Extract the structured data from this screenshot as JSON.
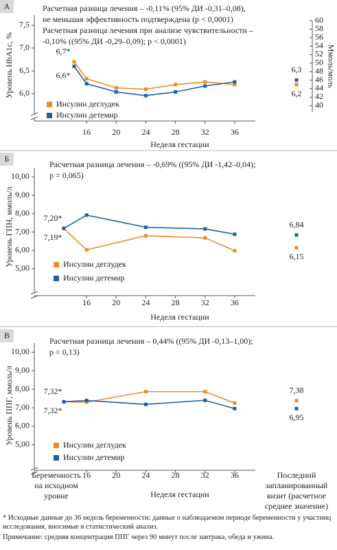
{
  "footnote": "* Исходные данные до 36 недель беременности: данные о наблюдаемом периоде беременности у участниц исследования, вносимые в статистический анализ.",
  "note": "Примечание: средняя концентрация ППГ через 90 минут после завтрака, обеда и ужина.",
  "chart_data": [
    {
      "type": "line",
      "panel": "А",
      "annotation": [
        "Расчетная разница лечения – -0,11% (95% ДИ -0,31–0,08),",
        "не меньшая эффективность подтверждена (p < 0,0001)",
        "Расчетная разница лечения при анализе чувствительности –",
        "-0,10% ((95% ДИ -0,29–0,09); p < 0,0001)"
      ],
      "ylabel": "Уровень HbA1c, %",
      "y2label": "Ммоль/моль",
      "xlabel": "Неделя гестации",
      "x": [
        null,
        16,
        20,
        24,
        28,
        32,
        36,
        null
      ],
      "xlim": [
        12,
        38
      ],
      "xticks": [
        16,
        20,
        24,
        28,
        32,
        36
      ],
      "ylim": [
        5.6,
        7.6
      ],
      "yticks": [
        {
          "value": 6.0,
          "label": "6,0"
        },
        {
          "value": 6.5,
          "label": "6,5"
        },
        {
          "value": 7.0,
          "label": "7,0"
        },
        {
          "value": 7.5,
          "label": "7,5"
        }
      ],
      "y2lim": [
        38.5,
        60
      ],
      "y2ticks": [
        40,
        42,
        44,
        46,
        48,
        50,
        52,
        54,
        56,
        58,
        60
      ],
      "series": [
        {
          "name": "Инсулин деглудек",
          "color": "#f08a24",
          "values": [
            6.7,
            6.33,
            6.13,
            6.1,
            6.2,
            6.26,
            6.2,
            6.2
          ],
          "value_labels": [
            "6,7*",
            null,
            null,
            null,
            null,
            null,
            null,
            "6,2"
          ]
        },
        {
          "name": "Инсулин детемир",
          "color": "#1f5fa8",
          "values": [
            6.6,
            6.22,
            6.04,
            5.96,
            6.04,
            6.17,
            6.26,
            6.3
          ],
          "value_labels": [
            "6,6*",
            null,
            null,
            null,
            null,
            null,
            null,
            "6,3"
          ]
        }
      ]
    },
    {
      "type": "line",
      "panel": "Б",
      "annotation": [
        "Расчетная разница лечения – -0,69% ((95% ДИ -1,42–0,04);",
        "p = 0,065)"
      ],
      "ylabel": "Уровень ГПН, ммоль/л",
      "xlabel": "Неделя гестации",
      "x": [
        null,
        16,
        24,
        32,
        36,
        null
      ],
      "xlim": [
        12,
        38
      ],
      "xticks": [
        16,
        20,
        24,
        28,
        32,
        36
      ],
      "ylim": [
        3.8,
        10.2
      ],
      "yticks": [
        {
          "value": 5,
          "label": "5,00"
        },
        {
          "value": 6,
          "label": "6,00"
        },
        {
          "value": 7,
          "label": "7,00"
        },
        {
          "value": 8,
          "label": "8,00"
        },
        {
          "value": 9,
          "label": "9,00"
        },
        {
          "value": 10,
          "label": "10,00"
        }
      ],
      "series": [
        {
          "name": "Инсулин деглудек",
          "color": "#f08a24",
          "values": [
            7.19,
            6.03,
            6.8,
            6.68,
            5.98,
            6.15
          ],
          "value_labels": [
            "7,19*",
            null,
            null,
            null,
            null,
            "6,15"
          ]
        },
        {
          "name": "Инсулин детемир",
          "color": "#1f5fa8",
          "values": [
            7.2,
            7.92,
            7.26,
            7.17,
            6.88,
            6.84
          ],
          "value_labels": [
            "7,20*",
            null,
            null,
            null,
            null,
            "6,84"
          ]
        }
      ]
    },
    {
      "type": "line",
      "panel": "В",
      "annotation": [
        "Расчетная разница лечения – 0,44% ((95% ДИ -0,13–1,00);",
        "p = 0,13)"
      ],
      "ylabel": "Уровень ППГ, ммоль/л",
      "xlabel": "Неделя гестации",
      "x_first_label": [
        "Беременность",
        "на исходном",
        "уровне"
      ],
      "x_last_label": [
        "Последний",
        "запланированный",
        "визит (расчетное",
        "среднее значение)"
      ],
      "x": [
        null,
        16,
        24,
        32,
        36,
        null
      ],
      "xlim": [
        12,
        38
      ],
      "xticks": [
        16,
        20,
        24,
        28,
        32,
        36
      ],
      "ylim": [
        3.8,
        10.2
      ],
      "yticks": [
        {
          "value": 5,
          "label": "5,00"
        },
        {
          "value": 6,
          "label": "6,00"
        },
        {
          "value": 7,
          "label": "7,00"
        },
        {
          "value": 8,
          "label": "8,00"
        },
        {
          "value": 9,
          "label": "9,00"
        },
        {
          "value": 10,
          "label": "10,00"
        }
      ],
      "series": [
        {
          "name": "Инсулин деглудек",
          "color": "#f08a24",
          "values": [
            7.32,
            7.3,
            7.87,
            7.87,
            7.25,
            7.38
          ],
          "value_labels": [
            "7,32*",
            null,
            null,
            null,
            null,
            "7,38"
          ]
        },
        {
          "name": "Инсулин детемир",
          "color": "#1f5fa8",
          "values": [
            7.32,
            7.39,
            7.18,
            7.4,
            6.95,
            6.95
          ],
          "value_labels": [
            "7,32*",
            null,
            null,
            null,
            null,
            "6,95"
          ]
        }
      ]
    }
  ]
}
